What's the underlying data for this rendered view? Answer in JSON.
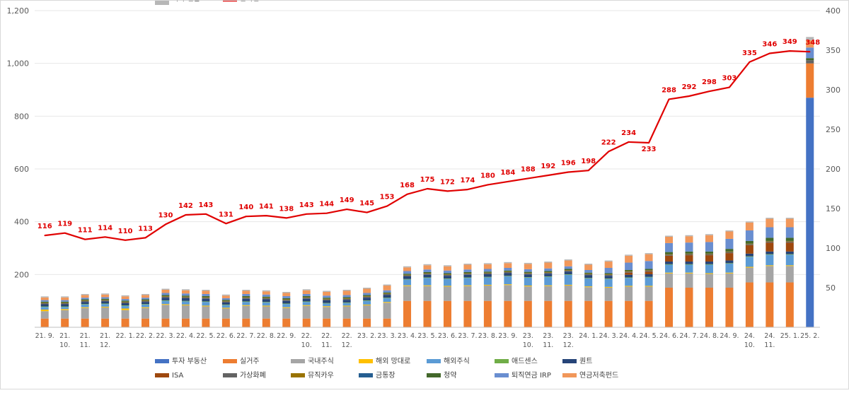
{
  "chart_data": {
    "type": "bar",
    "title": "",
    "xlabel": "",
    "ylabel": "",
    "ylim": [
      0,
      1200
    ],
    "y2lim": [
      0,
      400
    ],
    "yticks": [
      "",
      "200",
      "400",
      "600",
      "800",
      "1,000",
      "1,200"
    ],
    "y2ticks": [
      "",
      "50",
      "100",
      "150",
      "200",
      "250",
      "300",
      "350",
      "400"
    ],
    "categories": [
      "21. 9.",
      "21. 10.",
      "21. 11.",
      "21. 12.",
      "22. 1.",
      "22. 2.",
      "22. 3.",
      "22. 4.",
      "22. 5.",
      "22. 6.",
      "22. 7.",
      "22. 8.",
      "22. 9.",
      "22. 10.",
      "22. 11.",
      "22. 12.",
      "23. 2.",
      "23. 3.",
      "23. 4.",
      "23. 5.",
      "23. 6.",
      "23. 7.",
      "23. 8.",
      "23. 9.",
      "23. 10.",
      "23. 11.",
      "23. 12.",
      "24. 1.",
      "24. 3.",
      "24. 4.",
      "24. 5.",
      "24. 6.",
      "24. 7.",
      "24. 8.",
      "24. 9.",
      "24. 10.",
      "24. 11.",
      "25. 1.",
      "25. 2."
    ],
    "category_lines": [
      [
        "21. 9."
      ],
      [
        "21.",
        "10."
      ],
      [
        "21.",
        "11."
      ],
      [
        "21.",
        "12."
      ],
      [
        "22. 1."
      ],
      [
        "22. 2."
      ],
      [
        "22. 3."
      ],
      [
        "22. 4."
      ],
      [
        "22. 5."
      ],
      [
        "22. 6."
      ],
      [
        "22. 7."
      ],
      [
        "22. 8."
      ],
      [
        "22. 9."
      ],
      [
        "22.",
        "10."
      ],
      [
        "22.",
        "11."
      ],
      [
        "22.",
        "12."
      ],
      [
        "23. 2."
      ],
      [
        "23. 3."
      ],
      [
        "23. 4."
      ],
      [
        "23. 5."
      ],
      [
        "23. 6."
      ],
      [
        "23. 7."
      ],
      [
        "23. 8."
      ],
      [
        "23. 9."
      ],
      [
        "23.",
        "10."
      ],
      [
        "23.",
        "11."
      ],
      [
        "23.",
        "12."
      ],
      [
        "24. 1."
      ],
      [
        "24. 3."
      ],
      [
        "24. 4."
      ],
      [
        "24. 5."
      ],
      [
        "24. 6."
      ],
      [
        "24. 7."
      ],
      [
        "24. 8."
      ],
      [
        "24. 9."
      ],
      [
        "24.",
        "10."
      ],
      [
        "24.",
        "11."
      ],
      [
        "25. 1."
      ],
      [
        "25. 2."
      ]
    ],
    "series": [
      {
        "name": "투자 부동산",
        "color": "#4472c4",
        "values": [
          0,
          0,
          0,
          0,
          0,
          0,
          0,
          0,
          0,
          0,
          0,
          0,
          0,
          0,
          0,
          0,
          0,
          0,
          0,
          0,
          0,
          0,
          0,
          0,
          0,
          0,
          0,
          0,
          0,
          0,
          0,
          0,
          0,
          0,
          0,
          0,
          0,
          0,
          870
        ]
      },
      {
        "name": "실거주",
        "color": "#ed7d31",
        "values": [
          33,
          33,
          33,
          33,
          33,
          33,
          33,
          33,
          33,
          33,
          33,
          33,
          33,
          33,
          33,
          33,
          33,
          33,
          100,
          100,
          100,
          100,
          100,
          100,
          100,
          100,
          100,
          100,
          100,
          100,
          100,
          150,
          150,
          150,
          150,
          170,
          170,
          170,
          130
        ]
      },
      {
        "name": "국내주식",
        "color": "#a5a5a5",
        "values": [
          28,
          32,
          40,
          42,
          32,
          40,
          52,
          50,
          46,
          38,
          48,
          46,
          40,
          48,
          44,
          46,
          50,
          60,
          56,
          56,
          54,
          56,
          58,
          60,
          55,
          56,
          58,
          52,
          50,
          54,
          54,
          54,
          54,
          52,
          54,
          56,
          62,
          62,
          0
        ]
      },
      {
        "name": "해외 망대로",
        "color": "#ffc000",
        "values": [
          6,
          4,
          3,
          3,
          6,
          3,
          3,
          3,
          3,
          3,
          3,
          3,
          3,
          3,
          3,
          3,
          3,
          3,
          3,
          3,
          3,
          3,
          3,
          3,
          3,
          3,
          3,
          3,
          3,
          3,
          3,
          3,
          3,
          3,
          3,
          3,
          3,
          3,
          0
        ]
      },
      {
        "name": "해외주식",
        "color": "#5b9bd5",
        "values": [
          10,
          8,
          10,
          10,
          10,
          10,
          12,
          12,
          14,
          10,
          12,
          12,
          12,
          12,
          10,
          10,
          14,
          14,
          22,
          28,
          26,
          28,
          28,
          30,
          30,
          32,
          38,
          30,
          30,
          30,
          32,
          30,
          30,
          32,
          34,
          38,
          40,
          40,
          0
        ]
      },
      {
        "name": "애드센스",
        "color": "#70ad47",
        "values": [
          2,
          2,
          2,
          2,
          2,
          2,
          2,
          2,
          2,
          2,
          2,
          2,
          2,
          2,
          2,
          2,
          2,
          2,
          2,
          2,
          2,
          2,
          2,
          2,
          2,
          2,
          2,
          2,
          2,
          2,
          2,
          2,
          2,
          2,
          2,
          2,
          2,
          2,
          0
        ]
      },
      {
        "name": "퀀트",
        "color": "#264478",
        "values": [
          8,
          8,
          8,
          8,
          8,
          8,
          10,
          10,
          10,
          8,
          10,
          10,
          10,
          10,
          10,
          10,
          10,
          10,
          10,
          10,
          10,
          10,
          10,
          10,
          10,
          10,
          10,
          10,
          10,
          10,
          10,
          10,
          10,
          10,
          10,
          10,
          10,
          10,
          0
        ]
      },
      {
        "name": "ISA",
        "color": "#9e480e",
        "values": [
          0,
          0,
          0,
          0,
          0,
          0,
          0,
          0,
          0,
          0,
          0,
          0,
          0,
          0,
          0,
          0,
          0,
          0,
          0,
          0,
          0,
          0,
          0,
          0,
          0,
          0,
          0,
          0,
          0,
          8,
          10,
          22,
          24,
          24,
          28,
          32,
          34,
          34,
          0
        ]
      },
      {
        "name": "가상화폐",
        "color": "#636363",
        "values": [
          4,
          4,
          4,
          4,
          4,
          4,
          4,
          4,
          4,
          4,
          4,
          4,
          4,
          4,
          4,
          4,
          4,
          4,
          4,
          4,
          4,
          4,
          4,
          4,
          4,
          4,
          4,
          4,
          4,
          4,
          4,
          4,
          4,
          4,
          4,
          4,
          4,
          4,
          12
        ]
      },
      {
        "name": "뮤직카우",
        "color": "#997300",
        "values": [
          2,
          2,
          2,
          2,
          2,
          2,
          2,
          2,
          2,
          2,
          2,
          2,
          2,
          2,
          2,
          2,
          2,
          2,
          2,
          2,
          2,
          2,
          2,
          2,
          2,
          2,
          2,
          2,
          2,
          2,
          2,
          2,
          2,
          2,
          2,
          2,
          2,
          2,
          0
        ]
      },
      {
        "name": "금통장",
        "color": "#255e91",
        "values": [
          0,
          0,
          0,
          0,
          0,
          0,
          0,
          0,
          0,
          0,
          0,
          0,
          0,
          0,
          0,
          0,
          0,
          0,
          0,
          0,
          0,
          0,
          0,
          0,
          0,
          0,
          0,
          0,
          0,
          0,
          0,
          0,
          0,
          0,
          0,
          0,
          0,
          0,
          0
        ]
      },
      {
        "name": "청약",
        "color": "#43682b",
        "values": [
          4,
          4,
          4,
          4,
          4,
          4,
          4,
          4,
          4,
          4,
          4,
          4,
          4,
          4,
          4,
          4,
          4,
          4,
          4,
          4,
          4,
          4,
          4,
          4,
          4,
          4,
          4,
          4,
          4,
          4,
          4,
          8,
          8,
          8,
          10,
          10,
          12,
          12,
          8
        ]
      },
      {
        "name": "퇴직연금 IRP",
        "color": "#698ed0",
        "values": [
          6,
          6,
          6,
          6,
          6,
          6,
          8,
          8,
          8,
          6,
          8,
          8,
          8,
          8,
          8,
          8,
          8,
          8,
          10,
          10,
          10,
          10,
          10,
          10,
          10,
          10,
          10,
          10,
          20,
          28,
          30,
          34,
          34,
          36,
          38,
          40,
          40,
          40,
          40
        ]
      },
      {
        "name": "연금저축펀드",
        "color": "#f1975a",
        "values": [
          10,
          10,
          10,
          10,
          10,
          10,
          12,
          12,
          12,
          10,
          12,
          12,
          12,
          14,
          14,
          16,
          16,
          18,
          14,
          16,
          16,
          18,
          18,
          18,
          20,
          22,
          22,
          20,
          24,
          26,
          26,
          24,
          24,
          26,
          28,
          30,
          32,
          32,
          28
        ]
      },
      {
        "name": "회사 연금",
        "color": "#b7b7b7",
        "values": [
          4,
          4,
          4,
          4,
          4,
          4,
          4,
          4,
          4,
          4,
          4,
          4,
          4,
          4,
          4,
          4,
          4,
          4,
          4,
          4,
          4,
          4,
          4,
          4,
          4,
          4,
          4,
          4,
          4,
          4,
          4,
          4,
          4,
          4,
          4,
          4,
          4,
          4,
          12
        ]
      }
    ],
    "line": {
      "name": "순자산",
      "color": "#e00000",
      "axis": "right",
      "values": [
        116,
        119,
        111,
        114,
        110,
        113,
        130,
        142,
        143,
        131,
        140,
        141,
        138,
        143,
        144,
        149,
        145,
        153,
        168,
        175,
        172,
        174,
        180,
        184,
        188,
        192,
        196,
        198,
        222,
        234,
        233,
        288,
        292,
        298,
        303,
        335,
        346,
        349,
        348
      ],
      "labels": [
        "116",
        "119",
        "111",
        "114",
        "110",
        "113",
        "130",
        "142",
        "143",
        "131",
        "140",
        "141",
        "138",
        "143",
        "144",
        "149",
        "145",
        "153",
        "168",
        "175",
        "172",
        "174",
        "180",
        "184",
        "188",
        "192",
        "196",
        "198",
        "222",
        "234",
        "233",
        "288",
        "292",
        "298",
        "303",
        "335",
        "346",
        "349",
        "348"
      ]
    },
    "legend_position": "bottom"
  }
}
